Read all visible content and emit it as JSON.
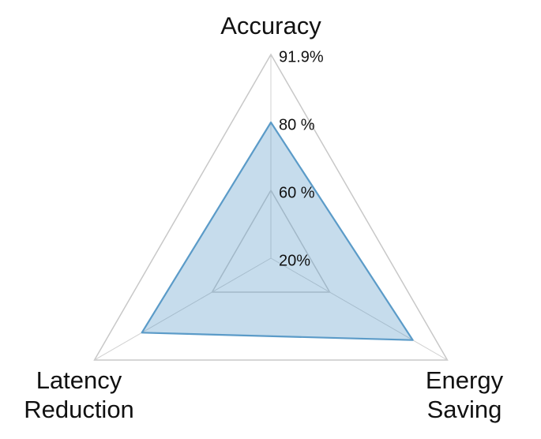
{
  "chart_data": {
    "type": "radar",
    "categories": [
      "Accuracy",
      "Energy Saving",
      "Latency Reduction"
    ],
    "series": [
      {
        "color": "#5b9bc8",
        "values": [
          80,
          84.9,
          82.3
        ]
      }
    ],
    "rticks": [
      {
        "value": 20,
        "label": "20%"
      },
      {
        "value": 60,
        "label": "60 %"
      },
      {
        "value": 80,
        "label": "80 %"
      },
      {
        "value": 91.9,
        "label": "91.9%"
      }
    ]
  }
}
